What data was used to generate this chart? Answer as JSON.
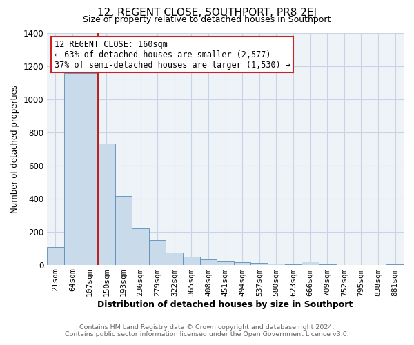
{
  "title": "12, REGENT CLOSE, SOUTHPORT, PR8 2EJ",
  "subtitle": "Size of property relative to detached houses in Southport",
  "xlabel": "Distribution of detached houses by size in Southport",
  "ylabel": "Number of detached properties",
  "categories": [
    "21sqm",
    "64sqm",
    "107sqm",
    "150sqm",
    "193sqm",
    "236sqm",
    "279sqm",
    "322sqm",
    "365sqm",
    "408sqm",
    "451sqm",
    "494sqm",
    "537sqm",
    "580sqm",
    "623sqm",
    "666sqm",
    "709sqm",
    "752sqm",
    "795sqm",
    "838sqm",
    "881sqm"
  ],
  "values": [
    105,
    1155,
    1155,
    730,
    415,
    220,
    148,
    75,
    50,
    33,
    22,
    15,
    10,
    7,
    4,
    18,
    4,
    0,
    0,
    0,
    4
  ],
  "bar_color": "#c9daea",
  "bar_edge_color": "#5b8db8",
  "grid_color": "#c5d5e5",
  "vline_color": "#bb2222",
  "annotation_title": "12 REGENT CLOSE: 160sqm",
  "annotation_line1": "← 63% of detached houses are smaller (2,577)",
  "annotation_line2": "37% of semi-detached houses are larger (1,530) →",
  "annotation_box_facecolor": "#ffffff",
  "annotation_box_edgecolor": "#cc2222",
  "footnote1": "Contains HM Land Registry data © Crown copyright and database right 2024.",
  "footnote2": "Contains public sector information licensed under the Open Government Licence v3.0.",
  "ylim": [
    0,
    1400
  ],
  "yticks": [
    0,
    200,
    400,
    600,
    800,
    1000,
    1200,
    1400
  ],
  "bg_color": "#ffffff",
  "plot_bg_color": "#eef3f8"
}
